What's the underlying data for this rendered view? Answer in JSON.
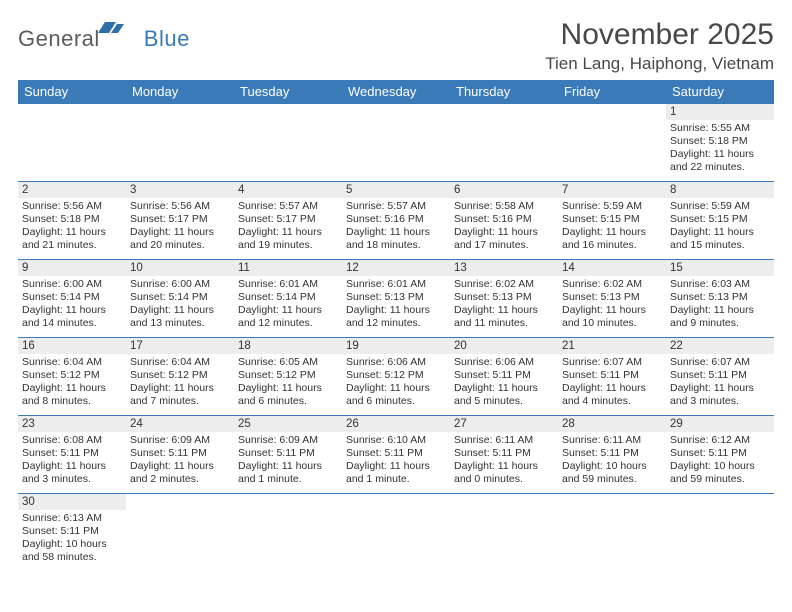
{
  "brand": {
    "general": "General",
    "blue": "Blue"
  },
  "title": "November 2025",
  "location": "Tien Lang, Haiphong, Vietnam",
  "colors": {
    "header_bg": "#3a7ab8",
    "header_text": "#ffffff",
    "daynum_bg": "#ededed",
    "border": "#3a7ab8",
    "text": "#333333",
    "flag": "#2d6fa8"
  },
  "weekdays": [
    "Sunday",
    "Monday",
    "Tuesday",
    "Wednesday",
    "Thursday",
    "Friday",
    "Saturday"
  ],
  "weeks": [
    [
      null,
      null,
      null,
      null,
      null,
      null,
      {
        "n": "1",
        "rise": "5:55 AM",
        "set": "5:18 PM",
        "day": "11 hours and 22 minutes."
      }
    ],
    [
      {
        "n": "2",
        "rise": "5:56 AM",
        "set": "5:18 PM",
        "day": "11 hours and 21 minutes."
      },
      {
        "n": "3",
        "rise": "5:56 AM",
        "set": "5:17 PM",
        "day": "11 hours and 20 minutes."
      },
      {
        "n": "4",
        "rise": "5:57 AM",
        "set": "5:17 PM",
        "day": "11 hours and 19 minutes."
      },
      {
        "n": "5",
        "rise": "5:57 AM",
        "set": "5:16 PM",
        "day": "11 hours and 18 minutes."
      },
      {
        "n": "6",
        "rise": "5:58 AM",
        "set": "5:16 PM",
        "day": "11 hours and 17 minutes."
      },
      {
        "n": "7",
        "rise": "5:59 AM",
        "set": "5:15 PM",
        "day": "11 hours and 16 minutes."
      },
      {
        "n": "8",
        "rise": "5:59 AM",
        "set": "5:15 PM",
        "day": "11 hours and 15 minutes."
      }
    ],
    [
      {
        "n": "9",
        "rise": "6:00 AM",
        "set": "5:14 PM",
        "day": "11 hours and 14 minutes."
      },
      {
        "n": "10",
        "rise": "6:00 AM",
        "set": "5:14 PM",
        "day": "11 hours and 13 minutes."
      },
      {
        "n": "11",
        "rise": "6:01 AM",
        "set": "5:14 PM",
        "day": "11 hours and 12 minutes."
      },
      {
        "n": "12",
        "rise": "6:01 AM",
        "set": "5:13 PM",
        "day": "11 hours and 12 minutes."
      },
      {
        "n": "13",
        "rise": "6:02 AM",
        "set": "5:13 PM",
        "day": "11 hours and 11 minutes."
      },
      {
        "n": "14",
        "rise": "6:02 AM",
        "set": "5:13 PM",
        "day": "11 hours and 10 minutes."
      },
      {
        "n": "15",
        "rise": "6:03 AM",
        "set": "5:13 PM",
        "day": "11 hours and 9 minutes."
      }
    ],
    [
      {
        "n": "16",
        "rise": "6:04 AM",
        "set": "5:12 PM",
        "day": "11 hours and 8 minutes."
      },
      {
        "n": "17",
        "rise": "6:04 AM",
        "set": "5:12 PM",
        "day": "11 hours and 7 minutes."
      },
      {
        "n": "18",
        "rise": "6:05 AM",
        "set": "5:12 PM",
        "day": "11 hours and 6 minutes."
      },
      {
        "n": "19",
        "rise": "6:06 AM",
        "set": "5:12 PM",
        "day": "11 hours and 6 minutes."
      },
      {
        "n": "20",
        "rise": "6:06 AM",
        "set": "5:11 PM",
        "day": "11 hours and 5 minutes."
      },
      {
        "n": "21",
        "rise": "6:07 AM",
        "set": "5:11 PM",
        "day": "11 hours and 4 minutes."
      },
      {
        "n": "22",
        "rise": "6:07 AM",
        "set": "5:11 PM",
        "day": "11 hours and 3 minutes."
      }
    ],
    [
      {
        "n": "23",
        "rise": "6:08 AM",
        "set": "5:11 PM",
        "day": "11 hours and 3 minutes."
      },
      {
        "n": "24",
        "rise": "6:09 AM",
        "set": "5:11 PM",
        "day": "11 hours and 2 minutes."
      },
      {
        "n": "25",
        "rise": "6:09 AM",
        "set": "5:11 PM",
        "day": "11 hours and 1 minute."
      },
      {
        "n": "26",
        "rise": "6:10 AM",
        "set": "5:11 PM",
        "day": "11 hours and 1 minute."
      },
      {
        "n": "27",
        "rise": "6:11 AM",
        "set": "5:11 PM",
        "day": "11 hours and 0 minutes."
      },
      {
        "n": "28",
        "rise": "6:11 AM",
        "set": "5:11 PM",
        "day": "10 hours and 59 minutes."
      },
      {
        "n": "29",
        "rise": "6:12 AM",
        "set": "5:11 PM",
        "day": "10 hours and 59 minutes."
      }
    ],
    [
      {
        "n": "30",
        "rise": "6:13 AM",
        "set": "5:11 PM",
        "day": "10 hours and 58 minutes."
      },
      null,
      null,
      null,
      null,
      null,
      null
    ]
  ],
  "labels": {
    "sunrise": "Sunrise:",
    "sunset": "Sunset:",
    "daylight": "Daylight:"
  }
}
